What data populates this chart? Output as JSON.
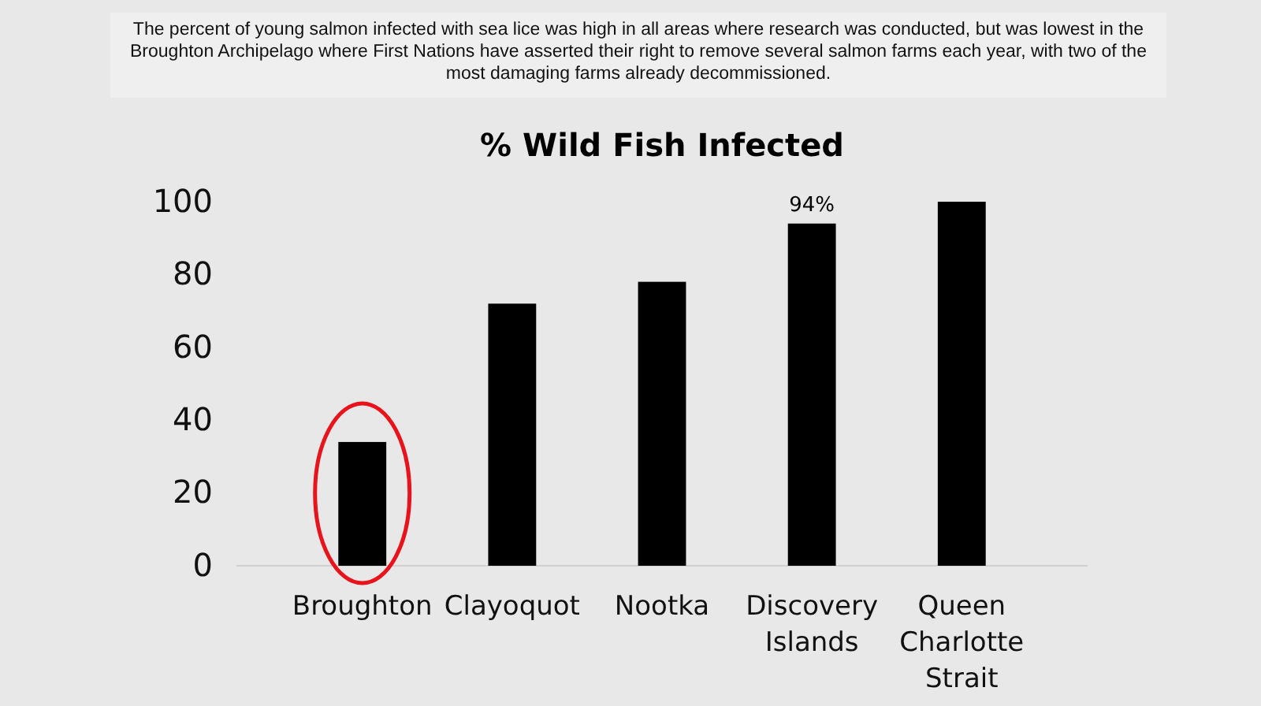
{
  "chart_data": {
    "type": "bar",
    "title": "% Wild Fish Infected",
    "subtitle": "The percent of young salmon infected with sea lice was high in all areas where research was conducted, but was lowest in the Broughton Archipelago where First Nations have asserted their right to remove several salmon farms each year, with two of the most damaging farms already decommissioned.",
    "categories": [
      "Broughton",
      "Clayoquot",
      "Nootka",
      "Discovery Islands",
      "Queen Charlotte Strait"
    ],
    "values": [
      34,
      72,
      78,
      94,
      100
    ],
    "value_labels": [
      null,
      null,
      null,
      "94%",
      null
    ],
    "color": "#000000",
    "ylim": [
      0,
      100
    ],
    "yticks": [
      0,
      20,
      40,
      60,
      80,
      100
    ],
    "grid": false
  }
}
